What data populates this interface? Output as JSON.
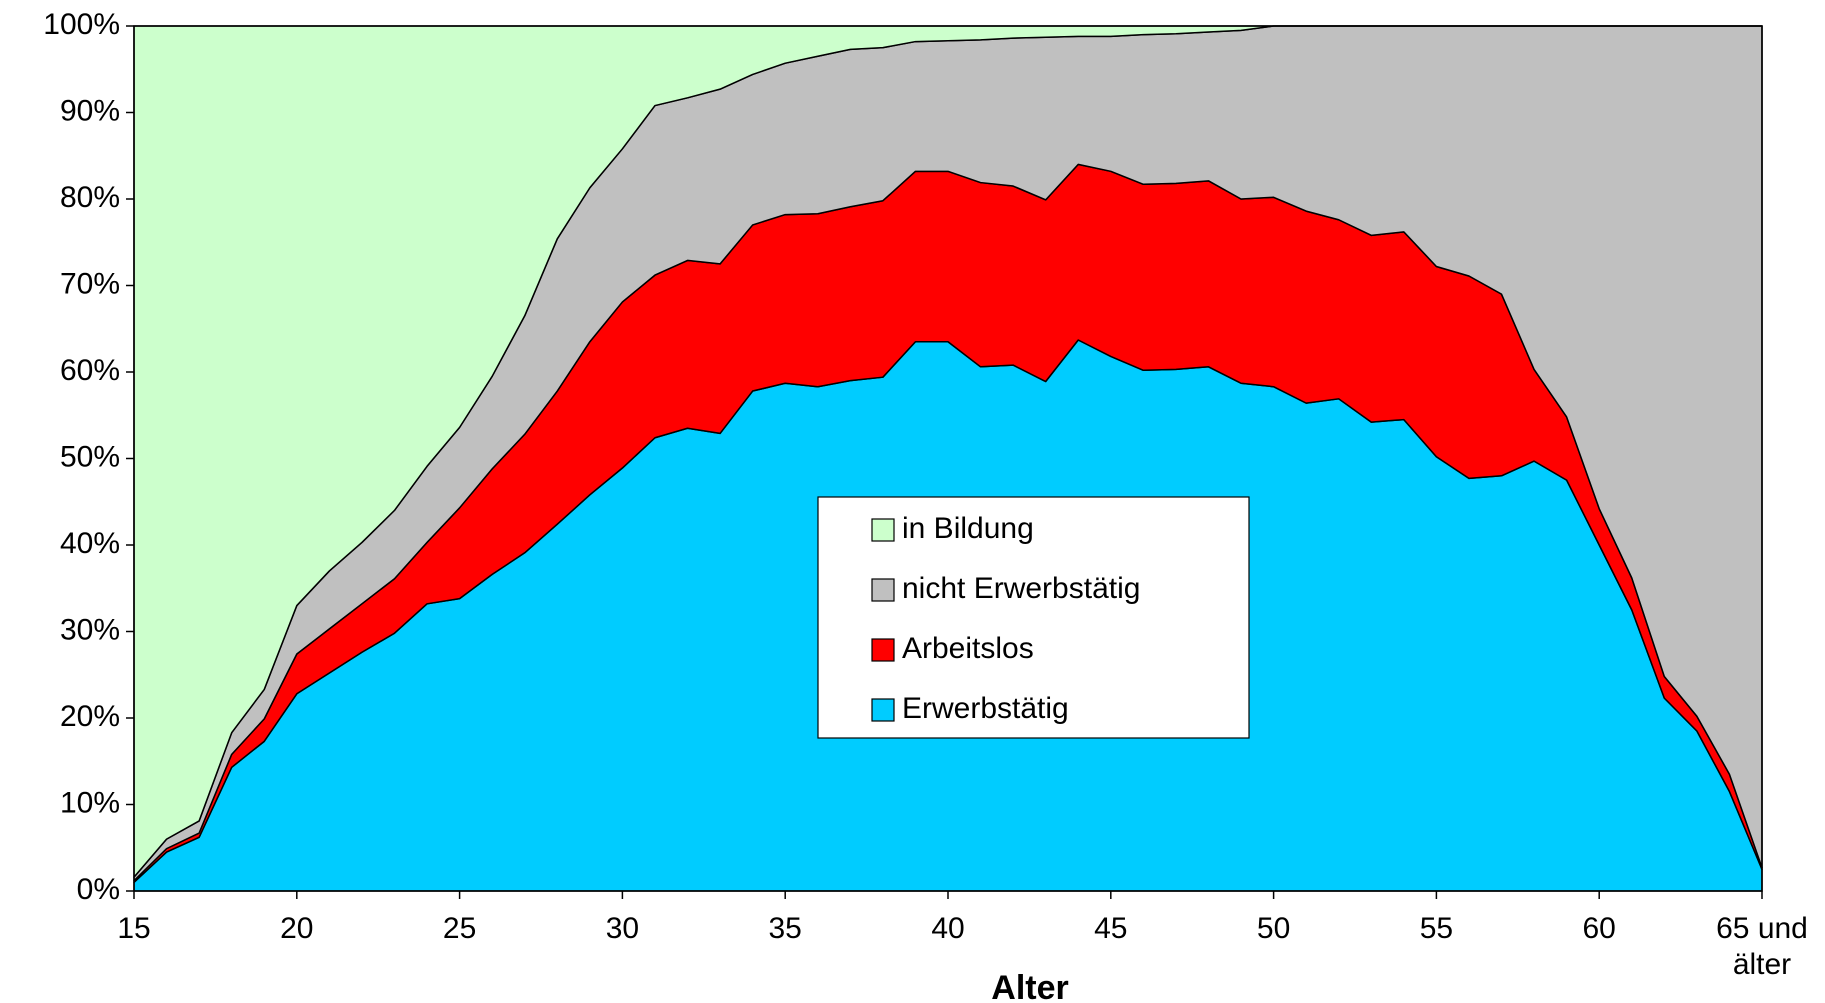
{
  "chart_data": {
    "type": "stacked_area",
    "x_label": "Alter",
    "x": [
      15,
      16,
      17,
      18,
      19,
      20,
      21,
      22,
      23,
      24,
      25,
      26,
      27,
      28,
      29,
      30,
      31,
      32,
      33,
      34,
      35,
      36,
      37,
      38,
      39,
      40,
      41,
      42,
      43,
      44,
      45,
      46,
      47,
      48,
      49,
      50,
      51,
      52,
      53,
      54,
      55,
      56,
      57,
      58,
      59,
      60,
      61,
      62,
      63,
      64,
      65
    ],
    "series": [
      {
        "name": "in Bildung",
        "color": "#ccffcc",
        "values": [
          98.4,
          94,
          91.9,
          81.7,
          76.7,
          67,
          63,
          59.7,
          56,
          50.9,
          46.4,
          40.5,
          33.5,
          24.6,
          18.7,
          14.2,
          9.2,
          8.3,
          7.3,
          5.6,
          4.3,
          3.5,
          2.7,
          2.5,
          1.8,
          1.7,
          1.6,
          1.4,
          1.3,
          1.2,
          1.2,
          1,
          0.9,
          0.7,
          0.5,
          0,
          0,
          0,
          0,
          0,
          0,
          0,
          0,
          0,
          0,
          0,
          0,
          0,
          0,
          0,
          0
        ]
      },
      {
        "name": "nicht Erwerbstätig",
        "color": "#c0c0c0",
        "values": [
          0.4,
          1.1,
          1.4,
          2.5,
          3.4,
          5.6,
          6.7,
          7.1,
          7.9,
          8.8,
          9.3,
          10.7,
          13.7,
          17.6,
          17.8,
          17.7,
          19.6,
          18.8,
          20.2,
          17.4,
          17.5,
          18.2,
          18.2,
          17.7,
          15,
          15.1,
          16.5,
          17.1,
          18.8,
          14.8,
          15.6,
          17.3,
          17.3,
          17.2,
          19.5,
          19.8,
          21.4,
          22.4,
          24.2,
          23.8,
          27.8,
          28.9,
          31,
          39.7,
          45.2,
          55.8,
          63.8,
          75.2,
          79.8,
          86.5,
          97.3
        ]
      },
      {
        "name": "Arbeitslos",
        "color": "#ff0000",
        "values": [
          0.2,
          0.4,
          0.5,
          1.5,
          2.6,
          4.6,
          5.1,
          5.6,
          6.3,
          7.1,
          10.5,
          12.2,
          13.7,
          15.4,
          17.7,
          19.2,
          18.8,
          19.4,
          19.6,
          19.2,
          19.5,
          20,
          20.1,
          20.4,
          19.7,
          19.7,
          21.3,
          20.7,
          21,
          20.3,
          21.4,
          21.5,
          21.5,
          21.5,
          21.3,
          21.9,
          22.2,
          20.7,
          21.6,
          21.7,
          22,
          23.4,
          21,
          10.6,
          7.3,
          4.2,
          3.7,
          2.5,
          1.7,
          2,
          0.2
        ]
      },
      {
        "name": "Erwerbstätig",
        "color": "#00ccff",
        "values": [
          1,
          4.5,
          6.2,
          14.3,
          17.3,
          22.8,
          25.2,
          27.6,
          29.8,
          33.2,
          33.8,
          36.6,
          39.1,
          42.4,
          45.8,
          48.9,
          52.4,
          53.5,
          52.9,
          57.8,
          58.7,
          58.3,
          59,
          59.4,
          63.5,
          63.5,
          60.6,
          60.8,
          58.9,
          63.7,
          61.8,
          60.2,
          60.3,
          60.6,
          58.7,
          58.3,
          56.4,
          56.9,
          54.2,
          54.5,
          50.2,
          47.7,
          48,
          49.7,
          47.5,
          40,
          32.5,
          22.3,
          18.5,
          11.5,
          2.5
        ]
      }
    ],
    "xlim": [
      15,
      65
    ],
    "xticks": [
      15,
      20,
      25,
      30,
      35,
      40,
      45,
      50,
      55,
      60,
      {
        "value": 65,
        "label": "65 und älter"
      }
    ],
    "ylim": [
      0,
      100
    ],
    "yticks": [
      {
        "value": 0,
        "label": "0%"
      },
      {
        "value": 10,
        "label": "10%"
      },
      {
        "value": 20,
        "label": "20%"
      },
      {
        "value": 30,
        "label": "30%"
      },
      {
        "value": 40,
        "label": "40%"
      },
      {
        "value": 50,
        "label": "50%"
      },
      {
        "value": 60,
        "label": "60%"
      },
      {
        "value": 70,
        "label": "70%"
      },
      {
        "value": 80,
        "label": "80%"
      },
      {
        "value": 90,
        "label": "90%"
      },
      {
        "value": 100,
        "label": "100%"
      }
    ],
    "legend": "center"
  }
}
